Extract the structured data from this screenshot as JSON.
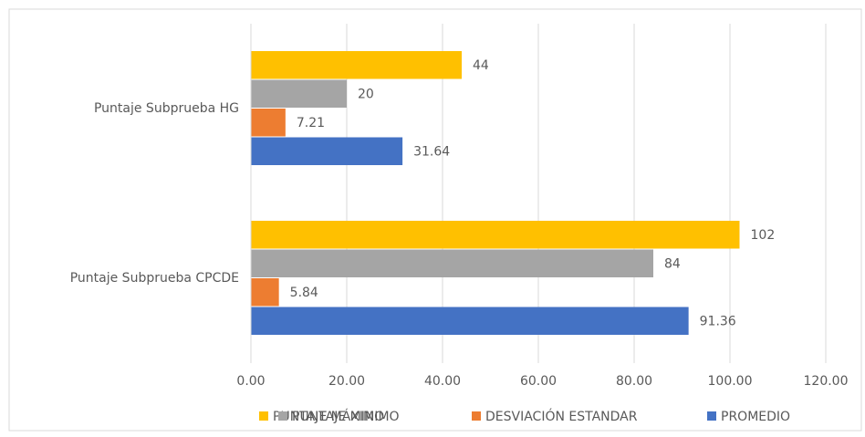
{
  "chart_data": {
    "type": "bar",
    "orientation": "horizontal",
    "categories": [
      "Puntaje Subprueba HG",
      "Puntaje Subprueba CPCDE"
    ],
    "series": [
      {
        "name": "PUNTAJE MÁXIMO",
        "color": "#ffc000",
        "values": [
          44,
          102
        ]
      },
      {
        "name": "PUNTAJE MINIMO",
        "color": "#a5a5a5",
        "values": [
          20,
          84
        ]
      },
      {
        "name": "DESVIACIÓN ESTANDAR",
        "color": "#ed7d31",
        "values": [
          7.21,
          5.84
        ]
      },
      {
        "name": "PROMEDIO",
        "color": "#4472c4",
        "values": [
          31.64,
          91.36
        ]
      }
    ],
    "xlim": [
      0,
      120
    ],
    "xticks": [
      {
        "value": 0,
        "label": "0.00"
      },
      {
        "value": 20,
        "label": "20.00"
      },
      {
        "value": 40,
        "label": "40.00"
      },
      {
        "value": 60,
        "label": "60.00"
      },
      {
        "value": 80,
        "label": "80.00"
      },
      {
        "value": 100,
        "label": "100.00"
      },
      {
        "value": 120,
        "label": "120.00"
      }
    ],
    "grid": true,
    "legend": "bottom"
  }
}
